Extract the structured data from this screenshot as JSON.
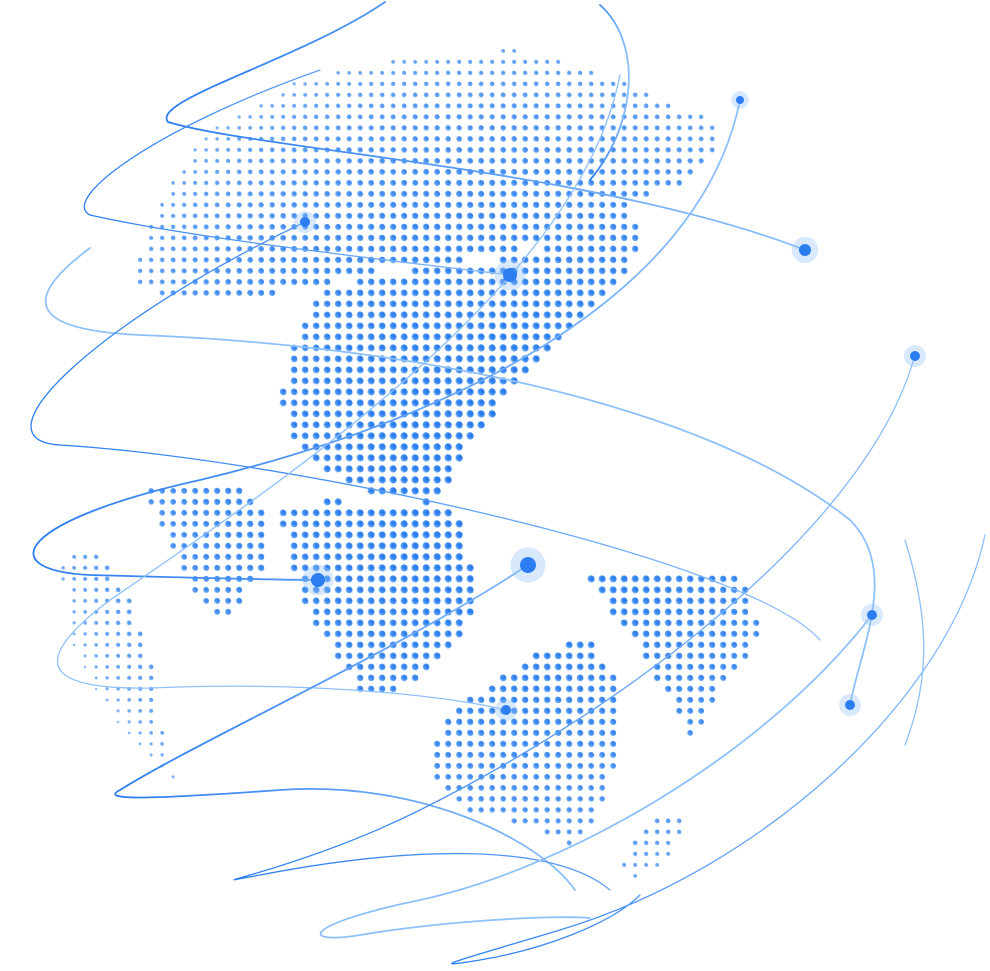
{
  "image": {
    "subject": "dotted-globe-with-orbit-lines",
    "colors": {
      "primary": "#2b7df0",
      "light": "#8ec0fa",
      "background": "#ffffff"
    }
  },
  "landmasses": [
    "north-asia",
    "east-asia",
    "south-asia",
    "southeast-asia",
    "japan",
    "australia",
    "new-zealand",
    "africa-east-edge",
    "pacific-islands"
  ],
  "orbit_nodes": [
    "north-asia-node",
    "japan-node",
    "siberia-node",
    "south-asia-node",
    "borneo-node",
    "australia-node",
    "pacific-east-node",
    "pacific-south-node",
    "north-pacific-node",
    "tasman-node"
  ]
}
